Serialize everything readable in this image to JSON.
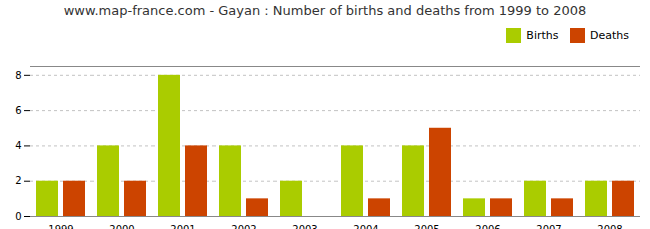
{
  "chart_data": {
    "type": "bar",
    "title": "www.map-france.com - Gayan : Number of births and deaths from 1999 to 2008",
    "categories": [
      "1999",
      "2000",
      "2001",
      "2002",
      "2003",
      "2004",
      "2005",
      "2006",
      "2007",
      "2008"
    ],
    "series": [
      {
        "name": "Births",
        "color": "#aacc00",
        "values": [
          2,
          4,
          8,
          4,
          2,
          4,
          4,
          1,
          2,
          2
        ]
      },
      {
        "name": "Deaths",
        "color": "#cc4400",
        "values": [
          2,
          2,
          4,
          1,
          0,
          1,
          5,
          1,
          1,
          2
        ]
      }
    ],
    "ylim": [
      0,
      8.5
    ],
    "yticks": [
      0,
      2,
      4,
      6,
      8
    ],
    "grid": true,
    "legend": "upper right"
  }
}
